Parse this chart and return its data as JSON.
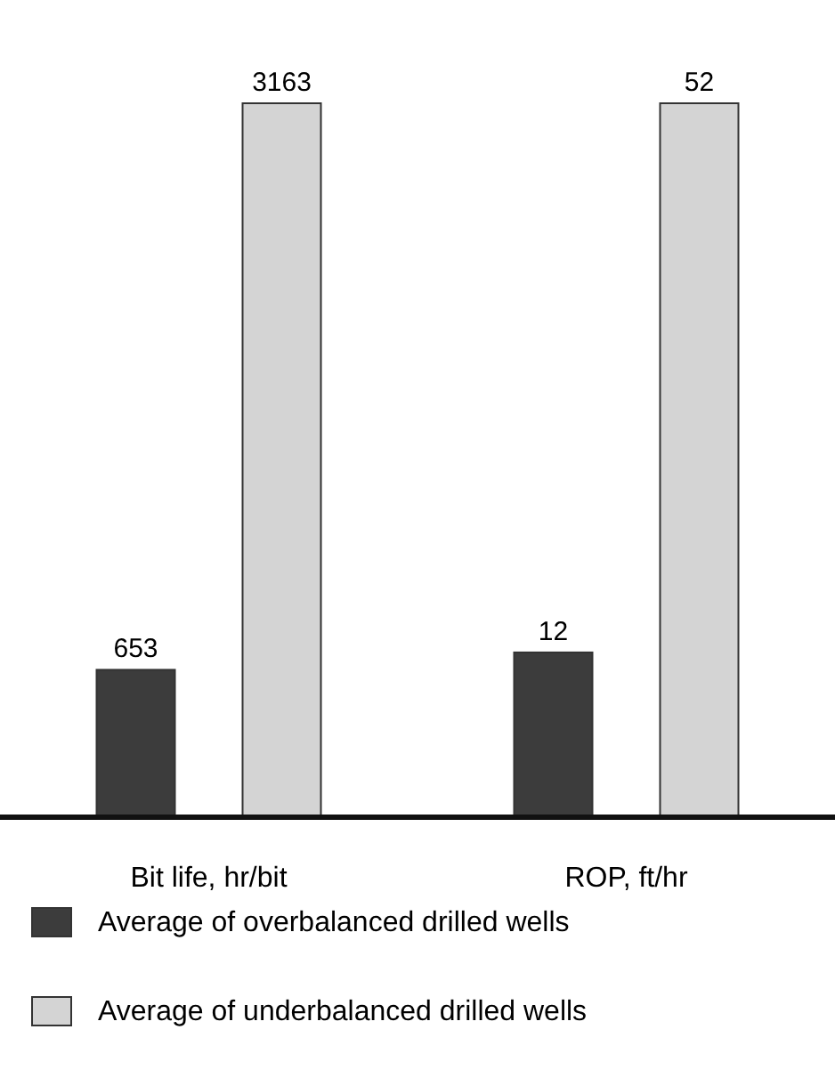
{
  "chart_data": [
    {
      "type": "bar",
      "categories": [
        "Bit life, hr/bit"
      ],
      "series": [
        {
          "name": "Average of overbalanced drilled wells",
          "color": "#3c3c3c",
          "values": [
            653
          ]
        },
        {
          "name": "Average of underbalanced drilled wells",
          "color": "#d4d4d4",
          "values": [
            3163
          ]
        }
      ],
      "data_labels": true,
      "legend": "bottom"
    },
    {
      "type": "bar",
      "categories": [
        "ROP, ft/hr"
      ],
      "series": [
        {
          "color": "#3c3c3c",
          "values": [
            12
          ]
        },
        {
          "color": "#d4d4d4",
          "values": [
            52
          ]
        }
      ],
      "data_labels": true
    }
  ]
}
